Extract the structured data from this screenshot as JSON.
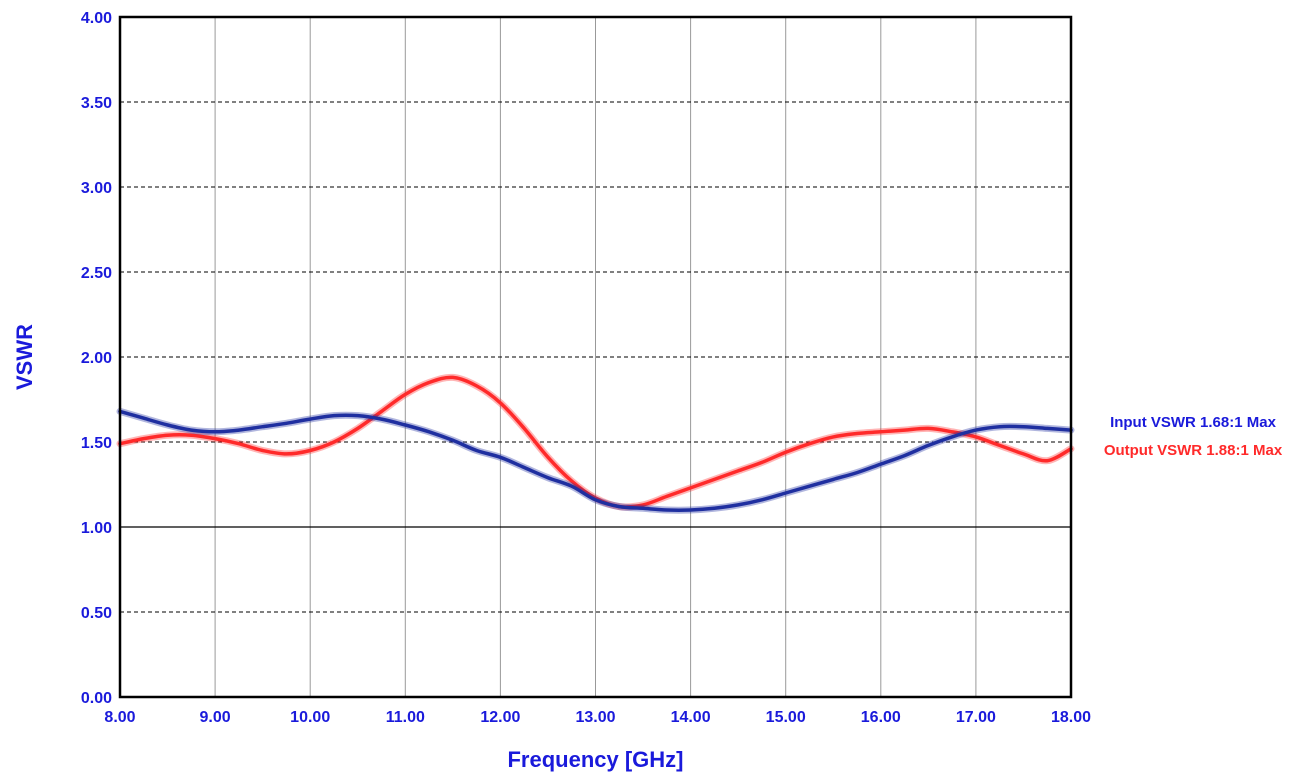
{
  "chart_data": {
    "type": "line",
    "xlabel": "Frequency [GHz]",
    "ylabel": "VSWR",
    "xlim": [
      8,
      18
    ],
    "ylim": [
      0,
      4
    ],
    "x_ticks": [
      "8.00",
      "9.00",
      "10.00",
      "11.00",
      "12.00",
      "13.00",
      "14.00",
      "15.00",
      "16.00",
      "17.00",
      "18.00"
    ],
    "y_ticks": [
      "0.00",
      "0.50",
      "1.00",
      "1.50",
      "2.00",
      "2.50",
      "3.00",
      "3.50",
      "4.00"
    ],
    "y_tick_values": [
      0,
      0.5,
      1,
      1.5,
      2,
      2.5,
      3,
      3.5,
      4
    ],
    "grid": true,
    "reference_line": 1.0,
    "legend_position": "right",
    "series": [
      {
        "name": "Input VSWR 1.68:1 Max",
        "color": "#1f2fa0",
        "points": [
          [
            8.0,
            1.68
          ],
          [
            8.25,
            1.64
          ],
          [
            8.5,
            1.6
          ],
          [
            8.75,
            1.57
          ],
          [
            9.0,
            1.56
          ],
          [
            9.25,
            1.57
          ],
          [
            9.5,
            1.59
          ],
          [
            9.75,
            1.61
          ],
          [
            10.0,
            1.635
          ],
          [
            10.25,
            1.655
          ],
          [
            10.5,
            1.655
          ],
          [
            10.75,
            1.635
          ],
          [
            11.0,
            1.6
          ],
          [
            11.25,
            1.56
          ],
          [
            11.5,
            1.51
          ],
          [
            11.75,
            1.45
          ],
          [
            12.0,
            1.41
          ],
          [
            12.25,
            1.35
          ],
          [
            12.5,
            1.29
          ],
          [
            12.75,
            1.24
          ],
          [
            13.0,
            1.16
          ],
          [
            13.25,
            1.12
          ],
          [
            13.5,
            1.11
          ],
          [
            13.75,
            1.1
          ],
          [
            14.0,
            1.1
          ],
          [
            14.25,
            1.11
          ],
          [
            14.5,
            1.13
          ],
          [
            14.75,
            1.16
          ],
          [
            15.0,
            1.2
          ],
          [
            15.25,
            1.24
          ],
          [
            15.5,
            1.28
          ],
          [
            15.75,
            1.32
          ],
          [
            16.0,
            1.37
          ],
          [
            16.25,
            1.42
          ],
          [
            16.5,
            1.48
          ],
          [
            16.75,
            1.53
          ],
          [
            17.0,
            1.57
          ],
          [
            17.25,
            1.59
          ],
          [
            17.5,
            1.59
          ],
          [
            17.75,
            1.58
          ],
          [
            18.0,
            1.57
          ]
        ]
      },
      {
        "name": "Output VSWR 1.88:1 Max",
        "color": "#ff2a2a",
        "points": [
          [
            8.0,
            1.49
          ],
          [
            8.25,
            1.52
          ],
          [
            8.5,
            1.54
          ],
          [
            8.75,
            1.54
          ],
          [
            9.0,
            1.52
          ],
          [
            9.25,
            1.49
          ],
          [
            9.5,
            1.45
          ],
          [
            9.75,
            1.43
          ],
          [
            10.0,
            1.45
          ],
          [
            10.25,
            1.5
          ],
          [
            10.5,
            1.58
          ],
          [
            10.75,
            1.68
          ],
          [
            11.0,
            1.78
          ],
          [
            11.25,
            1.85
          ],
          [
            11.5,
            1.88
          ],
          [
            11.75,
            1.83
          ],
          [
            12.0,
            1.73
          ],
          [
            12.25,
            1.58
          ],
          [
            12.5,
            1.41
          ],
          [
            12.75,
            1.27
          ],
          [
            13.0,
            1.17
          ],
          [
            13.25,
            1.12
          ],
          [
            13.5,
            1.13
          ],
          [
            13.75,
            1.18
          ],
          [
            14.0,
            1.23
          ],
          [
            14.25,
            1.28
          ],
          [
            14.5,
            1.33
          ],
          [
            14.75,
            1.38
          ],
          [
            15.0,
            1.44
          ],
          [
            15.25,
            1.49
          ],
          [
            15.5,
            1.53
          ],
          [
            15.75,
            1.55
          ],
          [
            16.0,
            1.56
          ],
          [
            16.25,
            1.57
          ],
          [
            16.5,
            1.58
          ],
          [
            16.75,
            1.56
          ],
          [
            17.0,
            1.53
          ],
          [
            17.25,
            1.48
          ],
          [
            17.5,
            1.43
          ],
          [
            17.75,
            1.39
          ],
          [
            18.0,
            1.46
          ]
        ]
      }
    ]
  },
  "colors": {
    "axis_text": "#1a1adb",
    "grid": "#999999",
    "frame": "#000000"
  }
}
